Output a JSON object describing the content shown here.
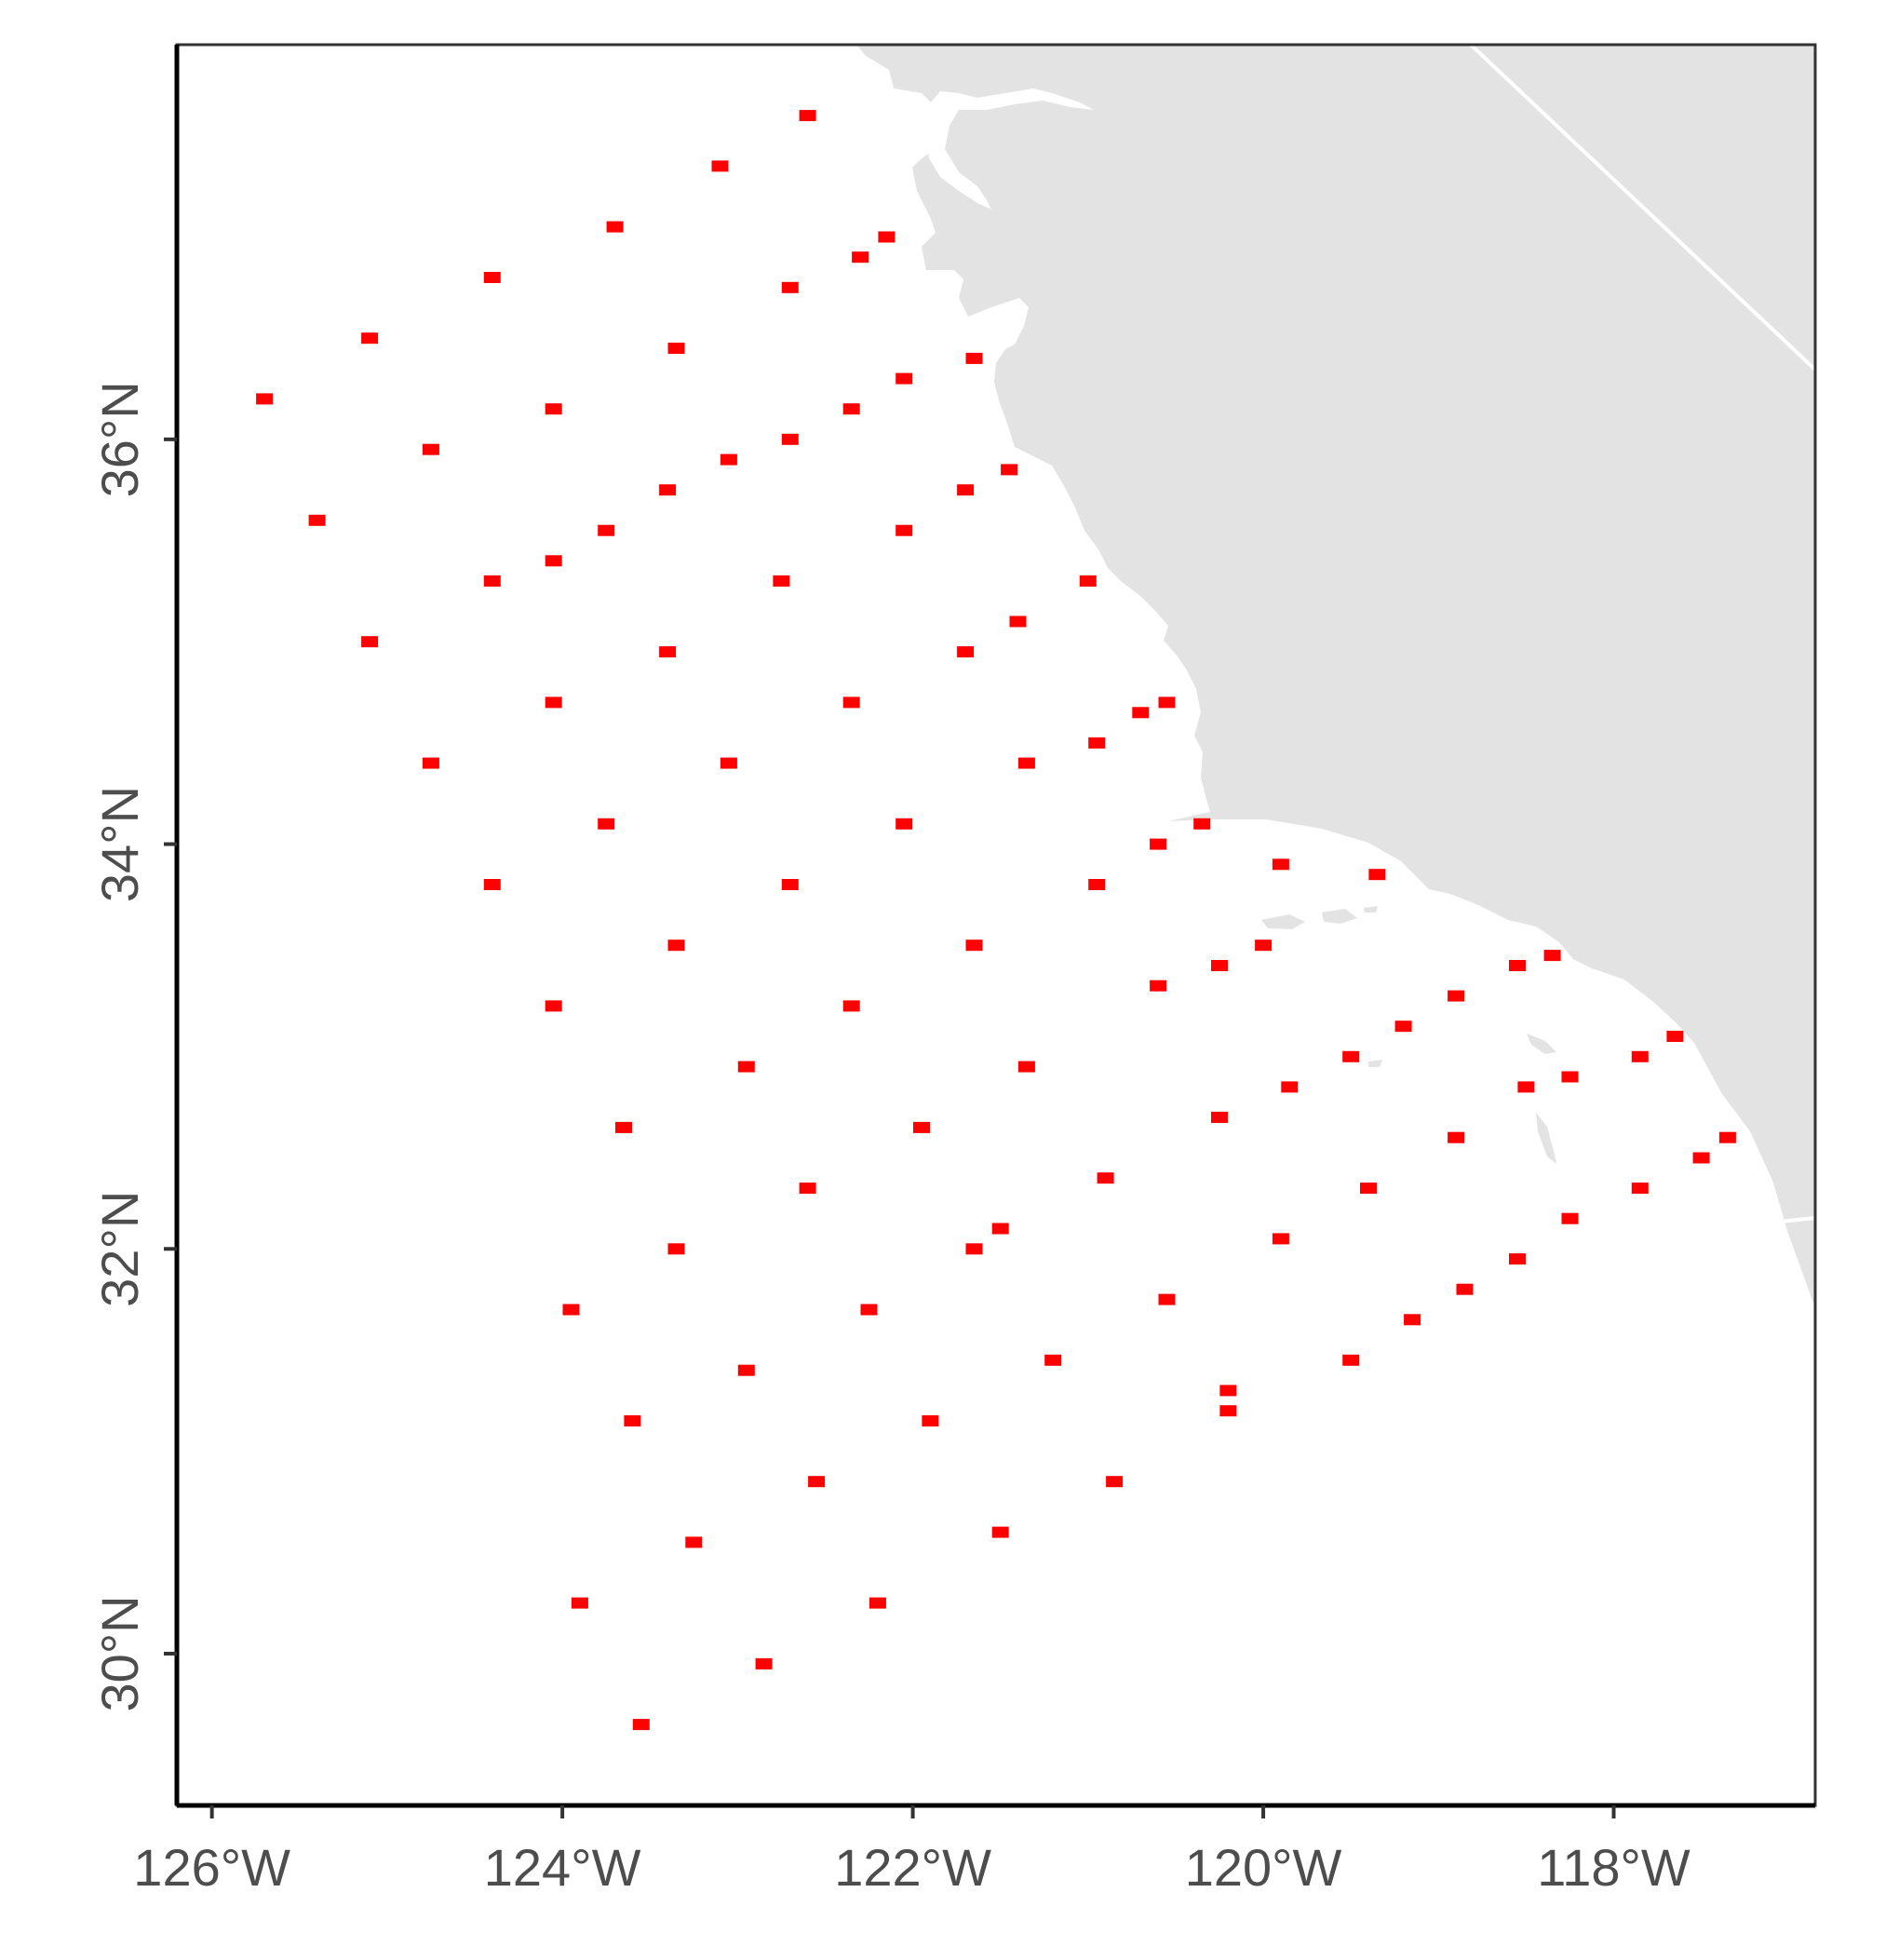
{
  "map": {
    "x_axis": {
      "ticks": [
        {
          "value": -126,
          "label": "126°W"
        },
        {
          "value": -124,
          "label": "124°W"
        },
        {
          "value": -122,
          "label": "122°W"
        },
        {
          "value": -120,
          "label": "120°W"
        },
        {
          "value": -118,
          "label": "118°W"
        }
      ],
      "range": [
        -126.2,
        -116.85
      ]
    },
    "y_axis": {
      "ticks": [
        {
          "value": 36,
          "label": "36°N"
        },
        {
          "value": 34,
          "label": "34°N"
        },
        {
          "value": 32,
          "label": "32°N"
        },
        {
          "value": 30,
          "label": "30°N"
        }
      ],
      "range": [
        29.25,
        37.95
      ]
    },
    "colors": {
      "land": "#e3e3e3",
      "ocean": "#ffffff",
      "points": "#ff0000",
      "axis": "#000000",
      "tick_label": "#4d4d4d"
    },
    "survey_points": [
      {
        "lon": -122.6,
        "lat": 37.6
      },
      {
        "lon": -123.1,
        "lat": 37.35
      },
      {
        "lon": -123.7,
        "lat": 37.05
      },
      {
        "lon": -122.3,
        "lat": 36.9
      },
      {
        "lon": -122.15,
        "lat": 37.0
      },
      {
        "lon": -124.4,
        "lat": 36.8
      },
      {
        "lon": -122.7,
        "lat": 36.75
      },
      {
        "lon": -125.1,
        "lat": 36.5
      },
      {
        "lon": -123.35,
        "lat": 36.45
      },
      {
        "lon": -121.65,
        "lat": 36.4
      },
      {
        "lon": -122.05,
        "lat": 36.3
      },
      {
        "lon": -125.7,
        "lat": 36.2
      },
      {
        "lon": -124.05,
        "lat": 36.15
      },
      {
        "lon": -122.35,
        "lat": 36.15
      },
      {
        "lon": -122.7,
        "lat": 36.0
      },
      {
        "lon": -124.75,
        "lat": 35.95
      },
      {
        "lon": -123.05,
        "lat": 35.9
      },
      {
        "lon": -121.45,
        "lat": 35.85
      },
      {
        "lon": -123.4,
        "lat": 35.75
      },
      {
        "lon": -121.7,
        "lat": 35.75
      },
      {
        "lon": -125.4,
        "lat": 35.6
      },
      {
        "lon": -123.75,
        "lat": 35.55
      },
      {
        "lon": -122.05,
        "lat": 35.55
      },
      {
        "lon": -124.05,
        "lat": 35.4
      },
      {
        "lon": -124.4,
        "lat": 35.3
      },
      {
        "lon": -122.75,
        "lat": 35.3
      },
      {
        "lon": -121.0,
        "lat": 35.3
      },
      {
        "lon": -121.4,
        "lat": 35.1
      },
      {
        "lon": -125.1,
        "lat": 35.0
      },
      {
        "lon": -123.4,
        "lat": 34.95
      },
      {
        "lon": -121.7,
        "lat": 34.95
      },
      {
        "lon": -124.05,
        "lat": 34.7
      },
      {
        "lon": -122.35,
        "lat": 34.7
      },
      {
        "lon": -120.55,
        "lat": 34.7
      },
      {
        "lon": -120.7,
        "lat": 34.65
      },
      {
        "lon": -120.95,
        "lat": 34.5
      },
      {
        "lon": -124.75,
        "lat": 34.4
      },
      {
        "lon": -123.05,
        "lat": 34.4
      },
      {
        "lon": -121.35,
        "lat": 34.4
      },
      {
        "lon": -123.75,
        "lat": 34.1
      },
      {
        "lon": -122.05,
        "lat": 34.1
      },
      {
        "lon": -120.35,
        "lat": 34.1
      },
      {
        "lon": -120.6,
        "lat": 34.0
      },
      {
        "lon": -119.9,
        "lat": 33.9
      },
      {
        "lon": -119.35,
        "lat": 33.85
      },
      {
        "lon": -124.4,
        "lat": 33.8
      },
      {
        "lon": -122.7,
        "lat": 33.8
      },
      {
        "lon": -120.95,
        "lat": 33.8
      },
      {
        "lon": -123.35,
        "lat": 33.5
      },
      {
        "lon": -121.65,
        "lat": 33.5
      },
      {
        "lon": -120.0,
        "lat": 33.5
      },
      {
        "lon": -118.35,
        "lat": 33.45
      },
      {
        "lon": -118.55,
        "lat": 33.4
      },
      {
        "lon": -120.25,
        "lat": 33.4
      },
      {
        "lon": -120.6,
        "lat": 33.3
      },
      {
        "lon": -118.9,
        "lat": 33.25
      },
      {
        "lon": -122.35,
        "lat": 33.2
      },
      {
        "lon": -124.05,
        "lat": 33.2
      },
      {
        "lon": -119.2,
        "lat": 33.1
      },
      {
        "lon": -117.65,
        "lat": 33.05
      },
      {
        "lon": -117.85,
        "lat": 32.95
      },
      {
        "lon": -119.5,
        "lat": 32.95
      },
      {
        "lon": -121.35,
        "lat": 32.9
      },
      {
        "lon": -122.95,
        "lat": 32.9
      },
      {
        "lon": -118.25,
        "lat": 32.85
      },
      {
        "lon": -119.85,
        "lat": 32.8
      },
      {
        "lon": -118.5,
        "lat": 32.8
      },
      {
        "lon": -120.25,
        "lat": 32.65
      },
      {
        "lon": -123.65,
        "lat": 32.6
      },
      {
        "lon": -121.95,
        "lat": 32.6
      },
      {
        "lon": -118.9,
        "lat": 32.55
      },
      {
        "lon": -117.35,
        "lat": 32.55
      },
      {
        "lon": -117.5,
        "lat": 32.45
      },
      {
        "lon": -120.9,
        "lat": 32.35
      },
      {
        "lon": -122.6,
        "lat": 32.3
      },
      {
        "lon": -119.4,
        "lat": 32.3
      },
      {
        "lon": -117.85,
        "lat": 32.3
      },
      {
        "lon": -118.25,
        "lat": 32.15
      },
      {
        "lon": -121.5,
        "lat": 32.1
      },
      {
        "lon": -119.9,
        "lat": 32.05
      },
      {
        "lon": -123.35,
        "lat": 32.0
      },
      {
        "lon": -121.65,
        "lat": 32.0
      },
      {
        "lon": -118.55,
        "lat": 31.95
      },
      {
        "lon": -118.85,
        "lat": 31.8
      },
      {
        "lon": -120.55,
        "lat": 31.75
      },
      {
        "lon": -123.95,
        "lat": 31.7
      },
      {
        "lon": -122.25,
        "lat": 31.7
      },
      {
        "lon": -119.15,
        "lat": 31.65
      },
      {
        "lon": -121.2,
        "lat": 31.45
      },
      {
        "lon": -119.5,
        "lat": 31.45
      },
      {
        "lon": -122.95,
        "lat": 31.4
      },
      {
        "lon": -120.2,
        "lat": 31.3
      },
      {
        "lon": -120.2,
        "lat": 31.2
      },
      {
        "lon": -123.6,
        "lat": 31.15
      },
      {
        "lon": -121.9,
        "lat": 31.15
      },
      {
        "lon": -120.85,
        "lat": 30.85
      },
      {
        "lon": -122.55,
        "lat": 30.85
      },
      {
        "lon": -123.25,
        "lat": 30.55
      },
      {
        "lon": -121.5,
        "lat": 30.6
      },
      {
        "lon": -123.9,
        "lat": 30.25
      },
      {
        "lon": -122.2,
        "lat": 30.25
      },
      {
        "lon": -122.85,
        "lat": 29.95
      },
      {
        "lon": -123.55,
        "lat": 29.65
      }
    ]
  }
}
